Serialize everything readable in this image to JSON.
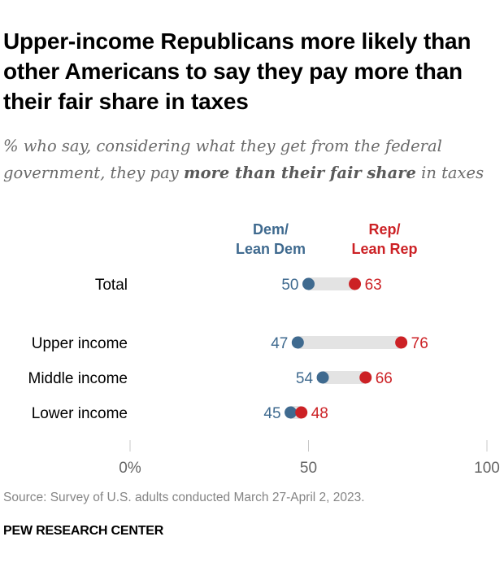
{
  "title": "Upper-income Republicans more likely than other Americans to say they pay more than their fair share in taxes",
  "subtitle": {
    "prefix": "% who say, considering what they get from the federal government, they pay ",
    "emphasis": "more than their fair share",
    "suffix": " in taxes"
  },
  "source": "Source: Survey of U.S. adults conducted March 27-April 2, 2023.",
  "brand": "PEW RESEARCH CENTER",
  "colors": {
    "dem": "#3f6a8f",
    "rep": "#cc2125",
    "bar": "#e3e3e3",
    "tick": "#c8c8c8",
    "axis_text": "#666666"
  },
  "chart_data": {
    "type": "dot",
    "title": "Upper-income Republicans more likely than other Americans to say they pay more than their fair share in taxes",
    "categories": [
      "Total",
      "Upper income",
      "Middle income",
      "Lower income"
    ],
    "series": [
      {
        "name": "Dem/\nLean Dem",
        "label_lines": [
          "Dem/",
          "Lean Dem"
        ],
        "values": [
          50,
          47,
          54,
          45
        ]
      },
      {
        "name": "Rep/\nLean Rep",
        "label_lines": [
          "Rep/",
          "Lean Rep"
        ],
        "values": [
          63,
          76,
          66,
          48
        ]
      }
    ],
    "x_ticks": [
      "0%",
      "50",
      "100"
    ],
    "x_tick_values": [
      0,
      50,
      100
    ],
    "xlim": [
      0,
      100
    ],
    "grid": false,
    "legend": "top"
  }
}
